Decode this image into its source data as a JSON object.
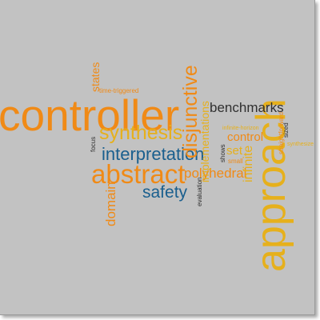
{
  "colors": {
    "background": "#c2c2c2",
    "orange": "#f08a16",
    "gold": "#e6b01c",
    "blue": "#1a5f8e",
    "dark": "#303030"
  },
  "words": {
    "controller": "controller",
    "approach": "approach",
    "abstract": "abstract",
    "interpretation": "interpretation",
    "synthesis": "synthesis",
    "disjunctive": "disjunctive",
    "benchmarks": "benchmarks",
    "safety": "safety",
    "polyhedral": "polyhedral",
    "domain": "domain",
    "implementations": "implementations",
    "infinite": "infinite",
    "control": "control",
    "states": "states",
    "set": "set",
    "time_triggered": "time-triggered",
    "focus": "focus",
    "evaluation": "evaluation",
    "shows": "shows",
    "small": "small",
    "infinite_horizon": "infinite-horizon",
    "straightforward": "straightforward",
    "sized": "sized",
    "synthesize": "synthesize"
  }
}
